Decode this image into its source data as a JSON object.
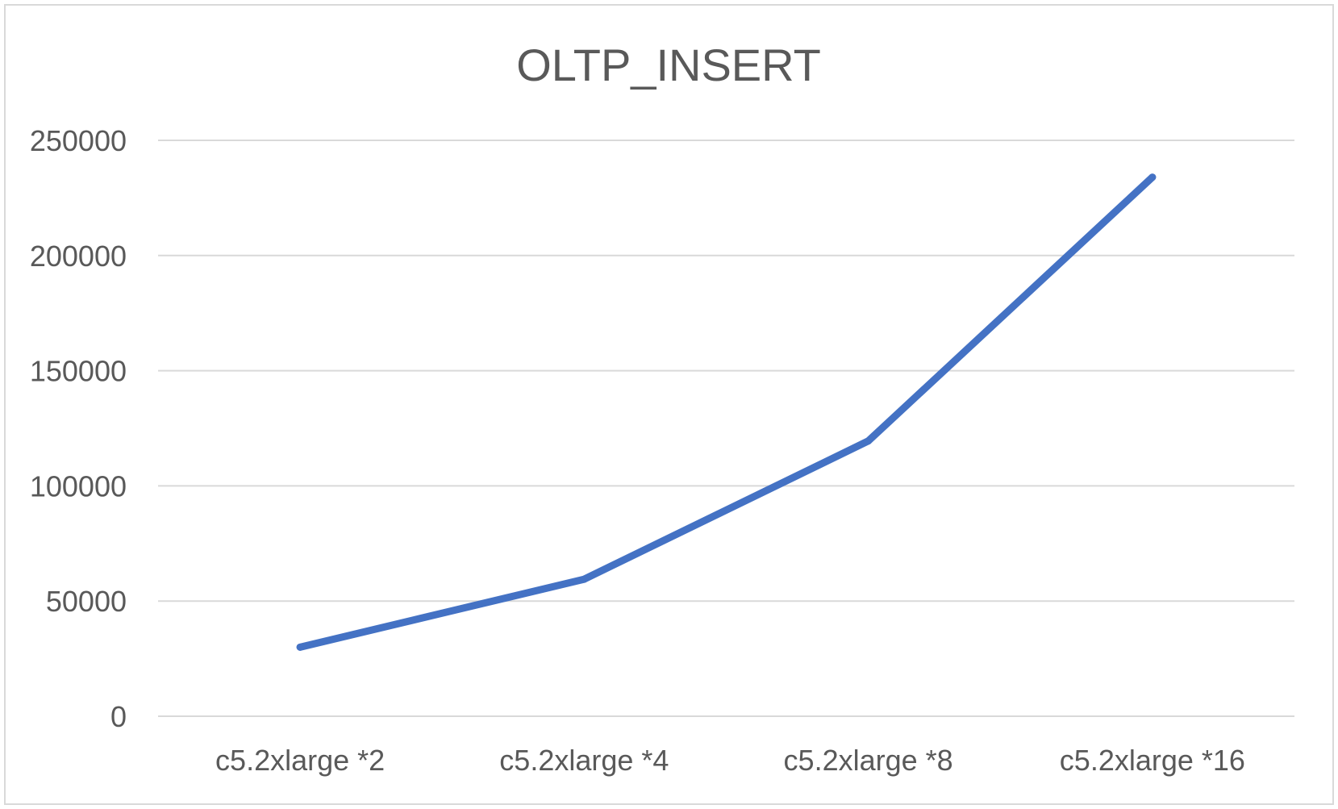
{
  "chart_data": {
    "type": "line",
    "title": "OLTP_INSERT",
    "xlabel": "",
    "ylabel": "",
    "categories": [
      "c5.2xlarge *2",
      "c5.2xlarge *4",
      "c5.2xlarge *8",
      "c5.2xlarge *16"
    ],
    "series": [
      {
        "values": [
          30000,
          59500,
          119500,
          234000
        ],
        "color": "#4472c4"
      }
    ],
    "ylim": [
      0,
      250000
    ],
    "yticks": [
      0,
      50000,
      100000,
      150000,
      200000,
      250000
    ],
    "grid": true,
    "legend": "none",
    "colors": {
      "gridline": "#d9d9d9",
      "text": "#595959",
      "border": "#d9d9d9"
    }
  }
}
